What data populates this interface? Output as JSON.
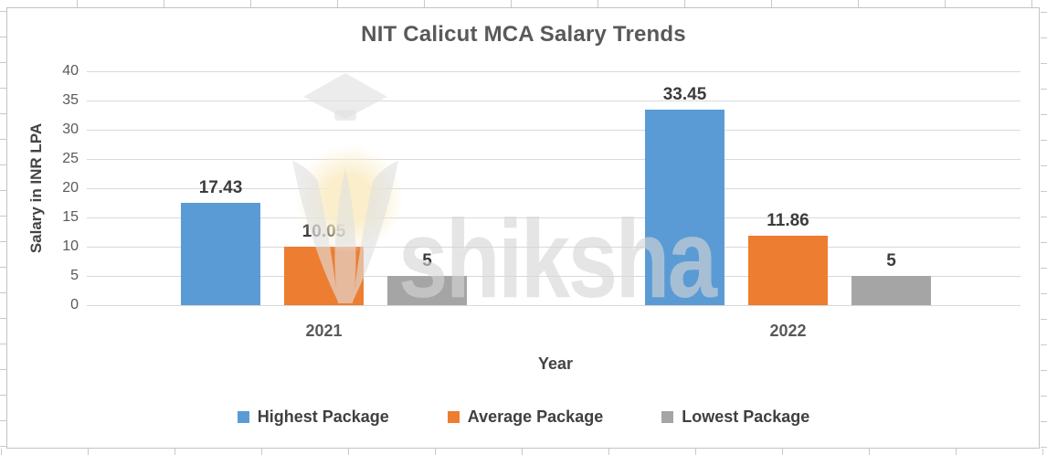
{
  "chart_data": {
    "type": "bar",
    "title": "NIT Calicut MCA Salary Trends",
    "xlabel": "Year",
    "ylabel": "Salary in INR LPA",
    "categories": [
      "2021",
      "2022"
    ],
    "series": [
      {
        "name": "Highest Package",
        "color": "#5B9BD5",
        "values": [
          17.43,
          33.45
        ],
        "labels": [
          "17.43",
          "33.45"
        ]
      },
      {
        "name": "Average Package",
        "color": "#ED7D31",
        "values": [
          10.05,
          11.86
        ],
        "labels": [
          "10.05",
          "11.86"
        ]
      },
      {
        "name": "Lowest Package",
        "color": "#A5A5A5",
        "values": [
          5,
          5
        ],
        "labels": [
          "5",
          "5"
        ]
      }
    ],
    "ylim": [
      0,
      40
    ],
    "ytick_step": 5,
    "grid": true,
    "legend_position": "bottom",
    "watermark": "shiksha"
  },
  "colors": {
    "gridline": "#D9D9D9",
    "axis_text": "#595959",
    "title_text": "#595959",
    "data_label_text": "#3C3C3C",
    "frame_border": "#C3C3C3"
  }
}
